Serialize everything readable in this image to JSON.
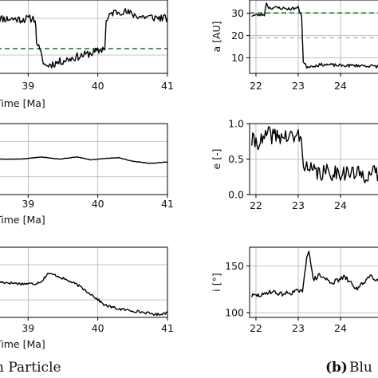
{
  "captions": {
    "left_text": "n Particle",
    "right_tag": "(b)",
    "right_text": "Blu"
  },
  "colors": {
    "series": "#000000",
    "dashed_dark": "#2e7d32",
    "dashed_light": "#a5d6a7",
    "grid": "#b0b0b0",
    "frame": "#000000"
  },
  "chart_data": [
    {
      "id": "left-top",
      "type": "line",
      "xlabel": "Time [Ma]",
      "ylabel": "",
      "xlim": [
        38.55,
        41.0
      ],
      "ylim": [
        0,
        40
      ],
      "xticks": [
        39,
        40,
        41
      ],
      "xticklabels": [
        "39",
        "40",
        "41"
      ],
      "yticks": [],
      "yticklabels": [],
      "grid": true,
      "hlines": [
        {
          "y": 13.5,
          "color_key": "dashed_dark"
        }
      ],
      "noise": 2.2,
      "seed": 11,
      "series": [
        {
          "x": [
            38.55,
            38.9,
            39.1,
            39.12,
            39.2,
            39.25,
            39.6,
            39.9,
            40.0,
            40.1,
            40.12,
            40.2,
            40.35,
            40.6,
            41.0
          ],
          "y": [
            30,
            29.5,
            30,
            18,
            8,
            4,
            8,
            11,
            12,
            14,
            28,
            33,
            34,
            31,
            30
          ]
        }
      ]
    },
    {
      "id": "left-mid",
      "type": "line",
      "xlabel": "Time [Ma]",
      "ylabel": "",
      "xlim": [
        38.55,
        41.0
      ],
      "ylim": [
        0,
        1
      ],
      "xticks": [
        39,
        40,
        41
      ],
      "xticklabels": [
        "39",
        "40",
        "41"
      ],
      "yticks": [],
      "yticklabels": [],
      "grid": true,
      "hlines": [],
      "noise": 0.003,
      "seed": 5,
      "series": [
        {
          "x": [
            38.55,
            38.9,
            39.2,
            39.45,
            39.7,
            39.9,
            40.1,
            40.3,
            40.5,
            40.75,
            41.0
          ],
          "y": [
            0.5,
            0.5,
            0.53,
            0.5,
            0.53,
            0.49,
            0.51,
            0.52,
            0.47,
            0.44,
            0.46
          ]
        }
      ]
    },
    {
      "id": "left-bot",
      "type": "line",
      "xlabel": "Time [Ma]",
      "ylabel": "",
      "xlim": [
        38.55,
        41.0
      ],
      "ylim": [
        95,
        170
      ],
      "xticks": [
        39,
        40,
        41
      ],
      "xticklabels": [
        "39",
        "40",
        "41"
      ],
      "yticks": [],
      "yticklabels": [],
      "grid": true,
      "hlines": [],
      "noise": 1.4,
      "seed": 17,
      "series": [
        {
          "x": [
            38.55,
            38.9,
            39.1,
            39.2,
            39.28,
            39.4,
            39.7,
            39.9,
            40.0,
            40.1,
            40.3,
            40.6,
            40.85,
            41.0
          ],
          "y": [
            133,
            131,
            131,
            134,
            142,
            140,
            130,
            120,
            114,
            108,
            104,
            101,
            98,
            100
          ]
        }
      ]
    },
    {
      "id": "right-top",
      "type": "line",
      "xlabel": "",
      "ylabel": "a [AU]",
      "xlim": [
        21.85,
        25.0
      ],
      "ylim": [
        3,
        36
      ],
      "xticks": [
        22,
        23,
        24
      ],
      "xticklabels": [
        "22",
        "23",
        "24"
      ],
      "yticks": [
        10,
        20,
        30
      ],
      "yticklabels": [
        "10",
        "20",
        "30"
      ],
      "grid": true,
      "hlines": [
        {
          "y": 30.2,
          "color_key": "dashed_dark"
        },
        {
          "y": 19,
          "color_key": "dashed_light"
        }
      ],
      "noise": 0.7,
      "seed": 23,
      "series": [
        {
          "x": [
            21.9,
            22.2,
            22.25,
            22.3,
            22.5,
            22.8,
            23.0,
            23.08,
            23.12,
            23.2,
            23.6,
            24.0,
            24.5,
            25.0
          ],
          "y": [
            29,
            29.5,
            35,
            32.5,
            32.5,
            32,
            32.5,
            29,
            8,
            6,
            7,
            6.5,
            6.5,
            6
          ]
        }
      ]
    },
    {
      "id": "right-mid",
      "type": "line",
      "xlabel": "",
      "ylabel": "e [-]",
      "xlim": [
        21.85,
        25.0
      ],
      "ylim": [
        0.0,
        1.0
      ],
      "xticks": [
        22,
        23,
        24
      ],
      "xticklabels": [
        "22",
        "23",
        "24"
      ],
      "yticks": [
        0.0,
        0.5,
        1.0
      ],
      "yticklabels": [
        "0.0",
        "0.5",
        "1.0"
      ],
      "grid": true,
      "hlines": [],
      "noise": 0.12,
      "seed": 41,
      "series": [
        {
          "x": [
            21.9,
            22.2,
            22.25,
            22.3,
            22.6,
            22.9,
            23.05,
            23.1,
            23.2,
            23.5,
            24.0,
            24.5,
            25.0
          ],
          "y": [
            0.75,
            0.75,
            0.86,
            0.84,
            0.82,
            0.8,
            0.85,
            0.55,
            0.35,
            0.3,
            0.32,
            0.28,
            0.3
          ]
        }
      ]
    },
    {
      "id": "right-bot",
      "type": "line",
      "xlabel": "",
      "ylabel": "i [°]",
      "xlim": [
        21.85,
        25.0
      ],
      "ylim": [
        95,
        170
      ],
      "xticks": [
        22,
        23,
        24
      ],
      "xticklabels": [
        "22",
        "23",
        "24"
      ],
      "yticks": [
        100,
        150
      ],
      "yticklabels": [
        "100",
        "150"
      ],
      "grid": true,
      "hlines": [],
      "noise": 2.5,
      "seed": 29,
      "series": [
        {
          "x": [
            21.9,
            22.2,
            22.3,
            22.6,
            22.9,
            23.05,
            23.1,
            23.2,
            23.25,
            23.35,
            23.5,
            23.8,
            24.1,
            24.4,
            24.7,
            25.0
          ],
          "y": [
            118,
            119,
            123,
            120,
            122,
            124,
            120,
            160,
            168,
            135,
            140,
            132,
            138,
            125,
            140,
            132
          ]
        }
      ]
    }
  ]
}
